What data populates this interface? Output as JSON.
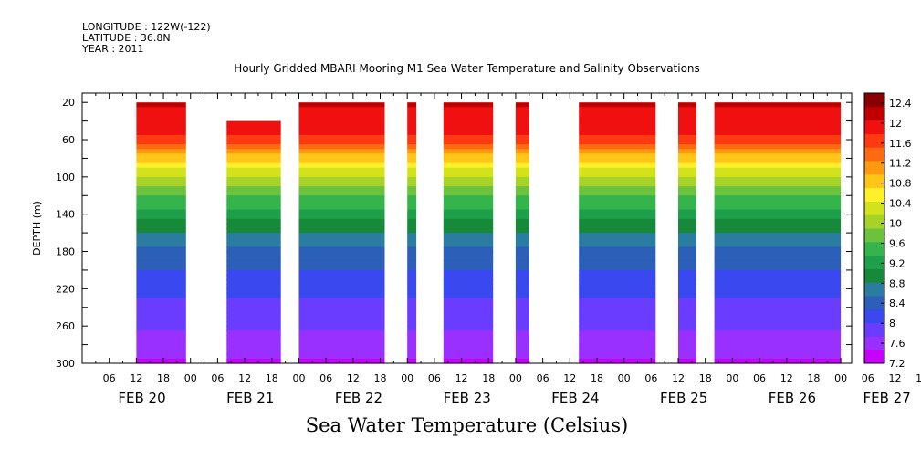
{
  "meta": {
    "longitude": "LONGITUDE : 122W(-122)",
    "latitude": "LATITUDE : 36.8N",
    "year": "YEAR : 2011"
  },
  "title": "Hourly Gridded MBARI Mooring M1 Sea Water Temperature and Salinity Observations",
  "bottom_title": "Sea Water Temperature (Celsius)",
  "colors": {
    "palette": [
      "#c800ff",
      "#9a30ff",
      "#6a3cff",
      "#3a48f0",
      "#2c5fb8",
      "#2a7ca0",
      "#178a3a",
      "#1ea04a",
      "#34b44a",
      "#6cc23c",
      "#a7d227",
      "#d2e31c",
      "#fff02a",
      "#ffc617",
      "#ff9a10",
      "#ff6a10",
      "#ff3a10",
      "#f01010",
      "#c00000",
      "#8a0000"
    ]
  },
  "chart_data": {
    "type": "heatmap",
    "title": "Hourly Gridded MBARI Mooring M1 Sea Water Temperature and Salinity Observations",
    "xlabel": "",
    "ylabel": "DEPTH (m)",
    "ylim": [
      300,
      10
    ],
    "y_ticks": [
      "20",
      "60",
      "100",
      "140",
      "180",
      "220",
      "260",
      "300"
    ],
    "x_range_days": [
      0,
      7.1
    ],
    "x_hour_ticks": [
      "06",
      "12",
      "18",
      "00",
      "06",
      "12",
      "18",
      "00",
      "06",
      "12",
      "18",
      "00",
      "06",
      "12",
      "18",
      "00",
      "06",
      "12",
      "18",
      "00",
      "06",
      "12",
      "18",
      "00",
      "06",
      "12",
      "18",
      "00",
      "06",
      "12",
      "18",
      "00"
    ],
    "x_date_labels": [
      "FEB 20",
      "FEB 21",
      "FEB 22",
      "FEB 23",
      "FEB 24",
      "FEB 25",
      "FEB 26",
      "FEB 27"
    ],
    "colorbar": {
      "label": "Sea Water Temperature (Celsius)",
      "ticks": [
        "12.4",
        "12",
        "11.6",
        "11.2",
        "10.8",
        "10.4",
        "10",
        "9.6",
        "9.2",
        "8.8",
        "8.4",
        "8",
        "7.6",
        "7.2"
      ],
      "range": [
        7.2,
        12.6
      ]
    },
    "profile": [
      {
        "depth": 20,
        "temp": 12.1
      },
      {
        "depth": 50,
        "temp": 11.9
      },
      {
        "depth": 70,
        "temp": 11.3
      },
      {
        "depth": 80,
        "temp": 10.8
      },
      {
        "depth": 100,
        "temp": 10.1
      },
      {
        "depth": 140,
        "temp": 9.2
      },
      {
        "depth": 180,
        "temp": 8.5
      },
      {
        "depth": 220,
        "temp": 8.1
      },
      {
        "depth": 260,
        "temp": 7.8
      },
      {
        "depth": 300,
        "temp": 7.4
      }
    ],
    "segments": [
      {
        "start": "FEB 20 12",
        "end": "FEB 20 23",
        "top_depth": 20
      },
      {
        "start": "FEB 21 08",
        "end": "FEB 21 20",
        "top_depth": 40
      },
      {
        "start": "FEB 22 00",
        "end": "FEB 22 19",
        "top_depth": 20
      },
      {
        "start": "FEB 23 00",
        "end": "FEB 23 02",
        "top_depth": 20
      },
      {
        "start": "FEB 23 08",
        "end": "FEB 23 19",
        "top_depth": 20
      },
      {
        "start": "FEB 24 00",
        "end": "FEB 24 03",
        "top_depth": 20
      },
      {
        "start": "FEB 24 14",
        "end": "FEB 25 07",
        "top_depth": 20
      },
      {
        "start": "FEB 25 12",
        "end": "FEB 25 16",
        "top_depth": 20
      },
      {
        "start": "FEB 25 20",
        "end": "FEB 27 00",
        "top_depth": 20
      }
    ]
  }
}
